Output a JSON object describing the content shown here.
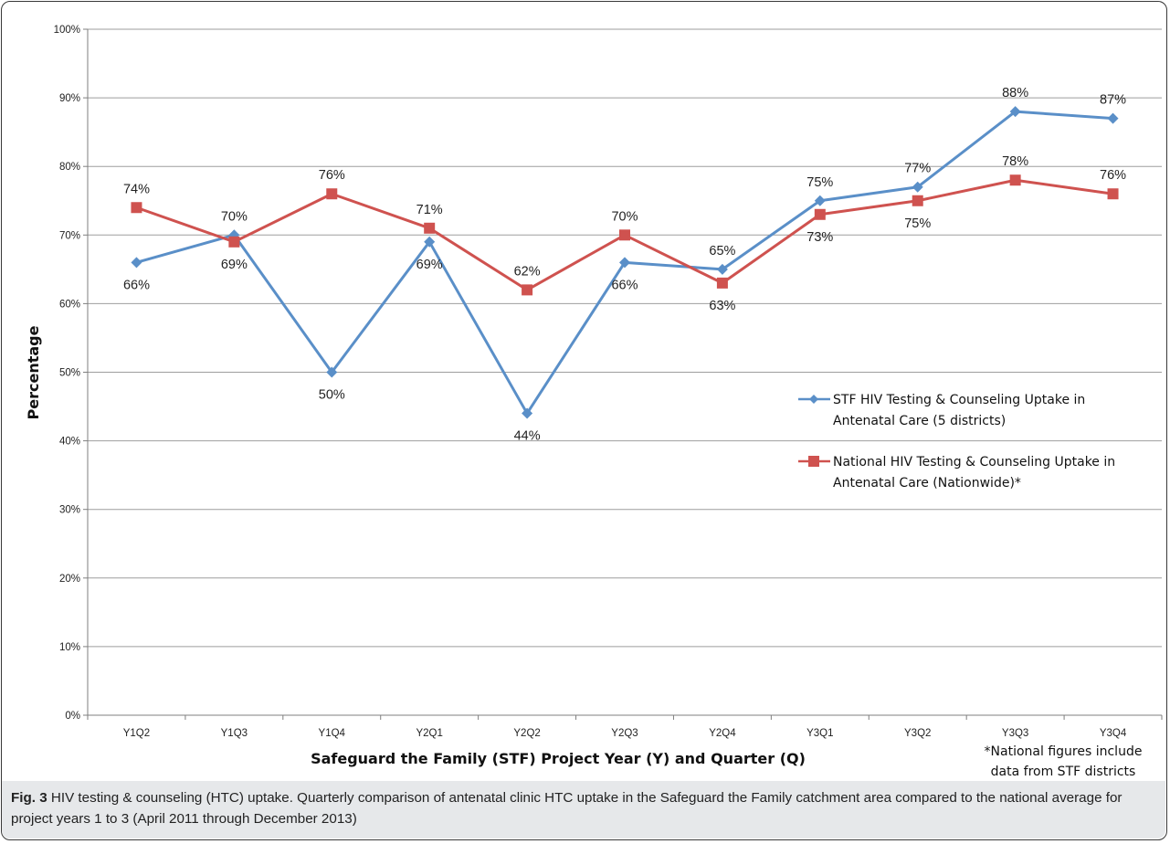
{
  "chart_data": {
    "type": "line",
    "categories": [
      "Y1Q2",
      "Y1Q3",
      "Y1Q4",
      "Y2Q1",
      "Y2Q2",
      "Y2Q3",
      "Y2Q4",
      "Y3Q1",
      "Y3Q2",
      "Y3Q3",
      "Y3Q4"
    ],
    "series": [
      {
        "name": "STF HIV Testing & Counseling Uptake in Antenatal Care (5 districts)",
        "color": "#5a8fc8",
        "marker": "diamond",
        "values": [
          66,
          70,
          50,
          69,
          44,
          66,
          65,
          75,
          77,
          88,
          87
        ],
        "labels": [
          "66%",
          "70%",
          "50%",
          "69%",
          "44%",
          "66%",
          "65%",
          "75%",
          "77%",
          "88%",
          "87%"
        ]
      },
      {
        "name": "National HIV Testing & Counseling Uptake in Antenatal Care (Nationwide)*",
        "color": "#cf524f",
        "marker": "square",
        "values": [
          74,
          69,
          76,
          71,
          62,
          70,
          63,
          73,
          75,
          78,
          76
        ],
        "labels": [
          "74%",
          "69%",
          "76%",
          "71%",
          "62%",
          "70%",
          "63%",
          "73%",
          "75%",
          "78%",
          "76%"
        ]
      }
    ],
    "xlabel": "Safeguard the Family (STF) Project Year (Y) and Quarter (Q)",
    "ylabel": "Percentage",
    "ylim": [
      0,
      100
    ],
    "yticks": [
      "0%",
      "10%",
      "20%",
      "30%",
      "40%",
      "50%",
      "60%",
      "70%",
      "80%",
      "90%",
      "100%"
    ],
    "grid": true,
    "legend_position": "right"
  },
  "footnote": {
    "line1": "*National figures include",
    "line2": "data from STF districts"
  },
  "legend": {
    "stf_line1": "STF HIV Testing & Counseling Uptake in",
    "stf_line2": "Antenatal Care (5 districts)",
    "nat_line1": "National HIV Testing & Counseling Uptake in",
    "nat_line2": "Antenatal Care (Nationwide)*"
  },
  "caption": {
    "label": "Fig. 3",
    "text": " HIV testing & counseling (HTC) uptake. Quarterly comparison of antenatal clinic HTC uptake in the Safeguard the Family catchment area compared to the national average for project years 1 to 3 (April 2011 through December 2013)"
  }
}
